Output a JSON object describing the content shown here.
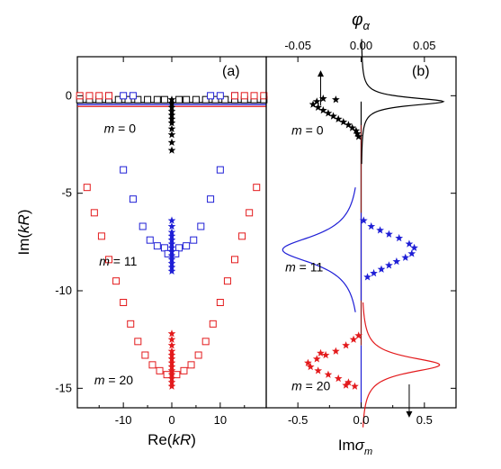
{
  "figure": {
    "panel_a_label": "(a)",
    "panel_b_label": "(b)"
  },
  "chart_data": [
    {
      "panel": "(a)",
      "type": "scatter",
      "xlabel": "Re(kR)",
      "ylabel": "Im(kR)",
      "xlim": [
        -19.5,
        19.5
      ],
      "ylim": [
        -16,
        2
      ],
      "xticks": [
        -10,
        0,
        10
      ],
      "yticks": [
        0,
        -5,
        -10,
        -15
      ],
      "xtick_labels": [
        "-10",
        "0",
        "10"
      ],
      "ytick_labels": [
        "0",
        "-5",
        "-10",
        "-15"
      ],
      "series": [
        {
          "label": "m = 0",
          "color": "#000000",
          "squares": [
            [
              -19,
              -0.2
            ],
            [
              -17,
              -0.2
            ],
            [
              -15,
              -0.2
            ],
            [
              -13,
              -0.2
            ],
            [
              -11,
              -0.2
            ],
            [
              -9,
              -0.2
            ],
            [
              -7,
              -0.2
            ],
            [
              -5,
              -0.2
            ],
            [
              -3,
              -0.2
            ],
            [
              -1.5,
              -0.2
            ],
            [
              1.5,
              -0.2
            ],
            [
              3,
              -0.2
            ],
            [
              5,
              -0.2
            ],
            [
              7,
              -0.2
            ],
            [
              9,
              -0.2
            ],
            [
              11,
              -0.2
            ],
            [
              13,
              -0.2
            ],
            [
              15,
              -0.2
            ],
            [
              17,
              -0.2
            ],
            [
              19,
              -0.2
            ]
          ],
          "stars": [
            [
              0,
              -0.2
            ],
            [
              0,
              -0.4
            ],
            [
              0,
              -0.6
            ],
            [
              0,
              -0.8
            ],
            [
              0,
              -1.0
            ],
            [
              0,
              -1.2
            ],
            [
              0,
              -1.4
            ],
            [
              0,
              -1.7
            ],
            [
              0,
              -2.0
            ],
            [
              0,
              -2.4
            ],
            [
              0,
              -2.8
            ]
          ],
          "line_y": -0.35
        },
        {
          "label": "m = 11",
          "color": "#1f1fd6",
          "squares": [
            [
              -13,
              0
            ],
            [
              -10,
              0
            ],
            [
              -8,
              0
            ],
            [
              8,
              0
            ],
            [
              10,
              0
            ],
            [
              13,
              0
            ],
            [
              -10,
              -3.8
            ],
            [
              -8,
              -5.3
            ],
            [
              -6,
              -6.7
            ],
            [
              -4.5,
              -7.4
            ],
            [
              -3,
              -7.7
            ],
            [
              -1.5,
              -7.8
            ],
            [
              1.5,
              -7.8
            ],
            [
              3,
              -7.7
            ],
            [
              4.5,
              -7.4
            ],
            [
              6,
              -6.7
            ],
            [
              8,
              -5.3
            ],
            [
              10,
              -3.8
            ],
            [
              -0.8,
              -8.1
            ],
            [
              0.8,
              -8.1
            ]
          ],
          "stars": [
            [
              0,
              -6.4
            ],
            [
              0,
              -6.7
            ],
            [
              0,
              -7.0
            ],
            [
              0,
              -7.2
            ],
            [
              0,
              -7.4
            ],
            [
              0,
              -7.6
            ],
            [
              0,
              -7.8
            ],
            [
              0,
              -8.0
            ],
            [
              0,
              -8.2
            ],
            [
              0,
              -8.4
            ],
            [
              0,
              -8.6
            ],
            [
              0,
              -8.8
            ],
            [
              0,
              -9.0
            ]
          ],
          "line_y": -0.45
        },
        {
          "label": "m = 20",
          "color": "#e31a1c",
          "squares": [
            [
              -19,
              0
            ],
            [
              -17,
              0
            ],
            [
              -15,
              0
            ],
            [
              -13,
              0
            ],
            [
              13,
              0
            ],
            [
              15,
              0
            ],
            [
              17,
              0
            ],
            [
              19,
              0
            ],
            [
              -17.5,
              -4.7
            ],
            [
              -16,
              -6.0
            ],
            [
              -14.5,
              -7.2
            ],
            [
              -13,
              -8.4
            ],
            [
              -11.5,
              -9.5
            ],
            [
              -10,
              -10.6
            ],
            [
              -8.5,
              -11.7
            ],
            [
              -7,
              -12.6
            ],
            [
              -5.5,
              -13.3
            ],
            [
              -4,
              -13.8
            ],
            [
              -2.5,
              -14.1
            ],
            [
              -1,
              -14.3
            ],
            [
              1,
              -14.3
            ],
            [
              2.5,
              -14.1
            ],
            [
              4,
              -13.8
            ],
            [
              5.5,
              -13.3
            ],
            [
              7,
              -12.6
            ],
            [
              8.5,
              -11.7
            ],
            [
              10,
              -10.6
            ],
            [
              11.5,
              -9.5
            ],
            [
              13,
              -8.4
            ],
            [
              14.5,
              -7.2
            ],
            [
              16,
              -6.0
            ],
            [
              17.5,
              -4.7
            ]
          ],
          "stars": [
            [
              0,
              -12.2
            ],
            [
              0,
              -12.5
            ],
            [
              0,
              -12.8
            ],
            [
              0,
              -13.1
            ],
            [
              0,
              -13.3
            ],
            [
              0,
              -13.5
            ],
            [
              0,
              -13.7
            ],
            [
              0,
              -13.9
            ],
            [
              0,
              -14.1
            ],
            [
              0,
              -14.3
            ],
            [
              0,
              -14.5
            ],
            [
              0,
              -14.7
            ],
            [
              0,
              -14.9
            ]
          ],
          "line_y": -0.55
        }
      ],
      "annotations": [
        {
          "text": "m = 0",
          "x": -14,
          "y": -1.9
        },
        {
          "text": "m = 11",
          "x": -15,
          "y": -8.7
        },
        {
          "text": "m = 20",
          "x": -16,
          "y": -14.8
        }
      ]
    },
    {
      "panel": "(b)",
      "type": "line",
      "xlabel": "Imσm",
      "x2label": "φα",
      "ylim": [
        -16,
        2
      ],
      "xlim_bottom": [
        -0.75,
        0.75
      ],
      "xticks_bottom": [
        -0.5,
        0.0,
        0.5
      ],
      "xtick_labels_bottom": [
        "-0.5",
        "0.0",
        "0.5"
      ],
      "xlim_top": [
        -0.075,
        0.075
      ],
      "xticks_top": [
        -0.05,
        0.0,
        0.05
      ],
      "xtick_labels_top": [
        "-0.05",
        "0.00",
        "0.05"
      ],
      "series": [
        {
          "label": "m = 0",
          "color": "#000000",
          "curve": {
            "center_y": -0.3,
            "amplitude": 0.065,
            "width": 0.25,
            "side": "right",
            "tail": "down"
          },
          "stars": [
            [
              -0.2,
              -0.2
            ],
            [
              -0.35,
              -0.3
            ],
            [
              -0.38,
              -0.45
            ],
            [
              -0.34,
              -0.6
            ],
            [
              -0.3,
              -0.75
            ],
            [
              -0.26,
              -0.9
            ],
            [
              -0.22,
              -1.05
            ],
            [
              -0.18,
              -1.2
            ],
            [
              -0.14,
              -1.35
            ],
            [
              -0.1,
              -1.5
            ],
            [
              -0.07,
              -1.65
            ],
            [
              -0.04,
              -1.8
            ],
            [
              -0.03,
              -1.95
            ],
            [
              -0.02,
              -2.1
            ],
            [
              -0.3,
              -0.15
            ]
          ]
        },
        {
          "label": "m = 11",
          "color": "#1f1fd6",
          "curve": {
            "center_y": -7.9,
            "amplitude": -0.062,
            "width": 0.9,
            "side": "left",
            "tail": "both"
          },
          "stars": [
            [
              0.02,
              -6.4
            ],
            [
              0.08,
              -6.7
            ],
            [
              0.15,
              -6.9
            ],
            [
              0.22,
              -7.1
            ],
            [
              0.3,
              -7.3
            ],
            [
              0.38,
              -7.6
            ],
            [
              0.42,
              -7.8
            ],
            [
              0.4,
              -8.1
            ],
            [
              0.35,
              -8.3
            ],
            [
              0.28,
              -8.5
            ],
            [
              0.22,
              -8.7
            ],
            [
              0.16,
              -8.9
            ],
            [
              0.1,
              -9.1
            ],
            [
              0.05,
              -9.3
            ]
          ]
        },
        {
          "label": "m = 20",
          "color": "#e31a1c",
          "curve": {
            "center_y": -13.8,
            "amplitude": 0.062,
            "width": 0.5,
            "side": "right",
            "tail": "up"
          },
          "stars": [
            [
              -0.02,
              -12.3
            ],
            [
              -0.06,
              -12.5
            ],
            [
              -0.12,
              -12.8
            ],
            [
              -0.2,
              -13.1
            ],
            [
              -0.28,
              -13.3
            ],
            [
              -0.35,
              -13.5
            ],
            [
              -0.42,
              -13.7
            ],
            [
              -0.4,
              -13.9
            ],
            [
              -0.34,
              -14.1
            ],
            [
              -0.26,
              -14.3
            ],
            [
              -0.18,
              -14.5
            ],
            [
              -0.1,
              -14.7
            ],
            [
              -0.05,
              -14.9
            ],
            [
              -0.32,
              -13.2
            ],
            [
              -0.12,
              -14.85
            ]
          ]
        }
      ],
      "annotations": [
        {
          "text": "m = 0",
          "x": -0.55,
          "y": -2.0
        },
        {
          "text": "m = 11",
          "x": -0.6,
          "y": -9.0
        },
        {
          "text": "m = 20",
          "x": -0.55,
          "y": -15.1
        }
      ],
      "arrows": [
        {
          "x": -0.32,
          "from_y": -0.5,
          "to_y": 1.3,
          "direction": "up"
        },
        {
          "x": 0.38,
          "from_y": -14.8,
          "to_y": -16.5,
          "direction": "down"
        }
      ]
    }
  ]
}
